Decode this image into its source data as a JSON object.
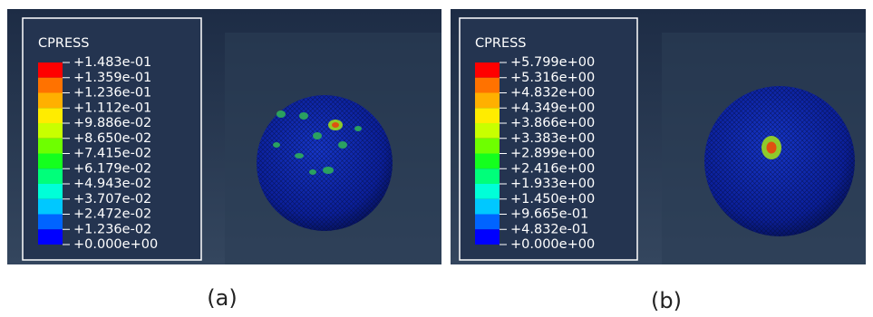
{
  "panels": [
    {
      "legend": {
        "title": "CPRESS",
        "labels": [
          "+1.483e-01",
          "+1.359e-01",
          "+1.236e-01",
          "+1.112e-01",
          "+9.886e-02",
          "+8.650e-02",
          "+7.415e-02",
          "+6.179e-02",
          "+4.943e-02",
          "+3.707e-02",
          "+2.472e-02",
          "+1.236e-02",
          "+0.000e+00"
        ]
      },
      "caption": "(a)"
    },
    {
      "legend": {
        "title": "CPRESS",
        "labels": [
          "+5.799e+00",
          "+5.316e+00",
          "+4.832e+00",
          "+4.349e+00",
          "+3.866e+00",
          "+3.383e+00",
          "+2.899e+00",
          "+2.416e+00",
          "+1.933e+00",
          "+1.450e+00",
          "+9.665e-01",
          "+4.832e-01",
          "+0.000e+00"
        ]
      },
      "caption": "(b)"
    }
  ]
}
